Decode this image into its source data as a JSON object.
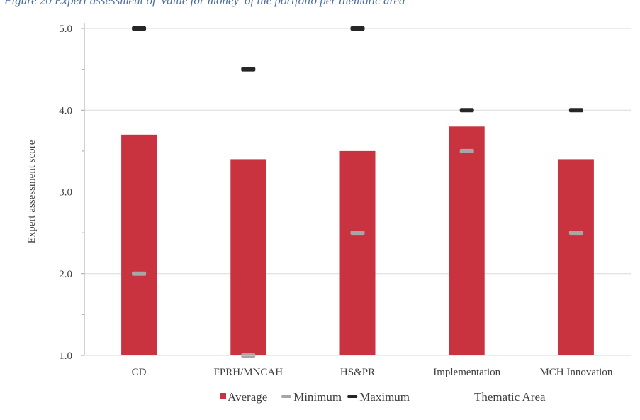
{
  "caption": "Figure 20 Expert assessment of 'value for money' of the portfolio per thematic area",
  "chart_data": {
    "type": "bar",
    "categories": [
      "CD",
      "FPRH/MNCAH",
      "HS&PR",
      "Implementation",
      "MCH Innovation"
    ],
    "series": [
      {
        "name": "Average",
        "kind": "bar",
        "color": "#c9323f",
        "values": [
          3.7,
          3.4,
          3.5,
          3.8,
          3.4
        ]
      },
      {
        "name": "Minimum",
        "kind": "marker",
        "color": "#a6a6a6",
        "values": [
          2.0,
          1.0,
          2.5,
          3.5,
          2.5
        ]
      },
      {
        "name": "Maximum",
        "kind": "marker",
        "color": "#262626",
        "values": [
          5.0,
          4.5,
          5.0,
          4.0,
          4.0
        ]
      }
    ],
    "ylabel": "Expert assessment score",
    "xlabel": "Thematic Area",
    "ylim": [
      1.0,
      5.0
    ],
    "yticks": [
      "1.0",
      "2.0",
      "3.0",
      "4.0",
      "5.0"
    ],
    "grid": true,
    "legend_position": "bottom"
  }
}
